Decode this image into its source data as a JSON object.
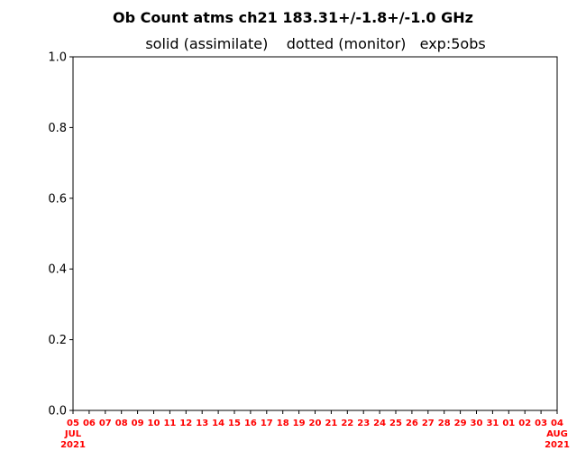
{
  "chart_data": {
    "type": "line",
    "title": "Ob Count atms ch21 183.31+/-1.8+/-1.0 GHz",
    "subtitle": "solid (assimilate)    dotted (monitor)   exp:5obs",
    "xlabel": "",
    "ylabel": "",
    "ylim": [
      0.0,
      1.0
    ],
    "yticks": [
      "0.0",
      "0.2",
      "0.4",
      "0.6",
      "0.8",
      "1.0"
    ],
    "xticks": [
      "05",
      "06",
      "07",
      "08",
      "09",
      "10",
      "11",
      "12",
      "13",
      "14",
      "15",
      "16",
      "17",
      "18",
      "19",
      "20",
      "21",
      "22",
      "23",
      "24",
      "25",
      "26",
      "27",
      "28",
      "29",
      "30",
      "31",
      "01",
      "02",
      "03",
      "04"
    ],
    "xtick_start_extra": [
      "JUL",
      "2021"
    ],
    "xtick_end_extra": [
      "AUG",
      "2021"
    ],
    "series": [],
    "grid": false
  },
  "colors": {
    "xtick_label": "#ff0000",
    "axis": "#000000"
  }
}
